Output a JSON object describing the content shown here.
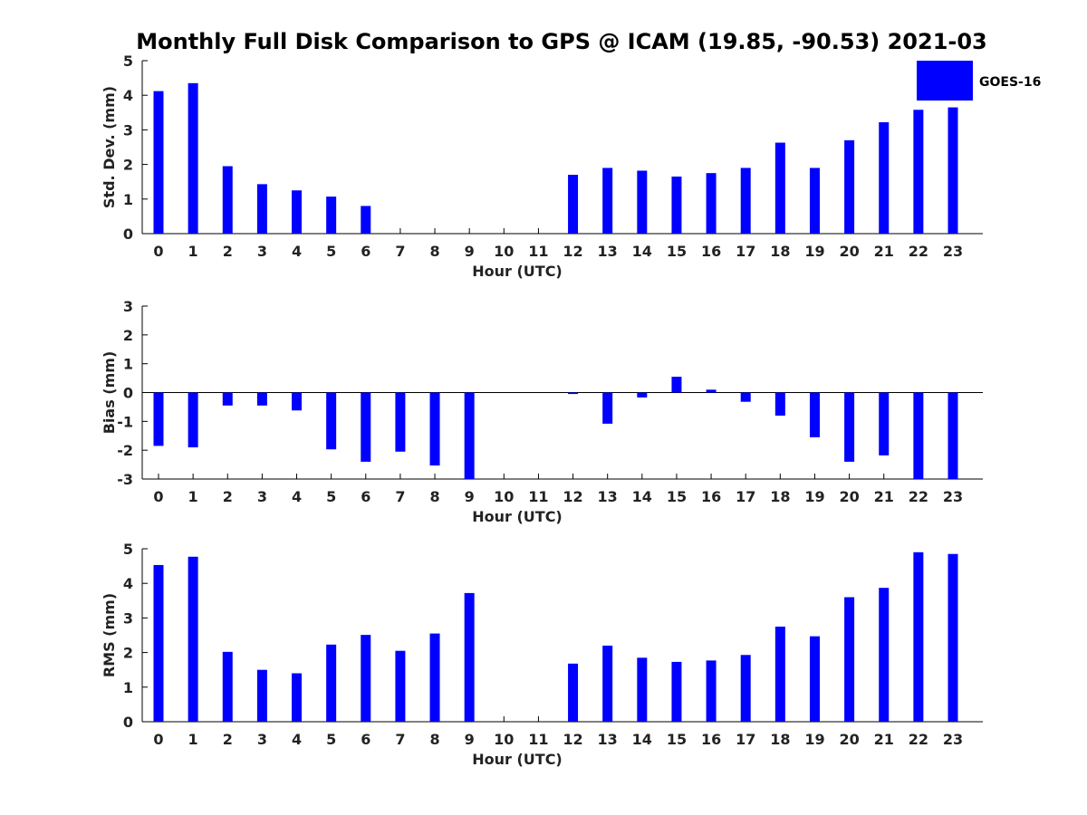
{
  "chart_data": {
    "type": "bar",
    "title": "Monthly Full Disk Comparison to GPS @ ICAM (19.85, -90.53) 2021-03",
    "legend": {
      "label": "GOES-16",
      "color": "#0000ff",
      "placement": "top-right"
    },
    "categories": [
      "0",
      "1",
      "2",
      "3",
      "4",
      "5",
      "6",
      "7",
      "8",
      "9",
      "10",
      "11",
      "12",
      "13",
      "14",
      "15",
      "16",
      "17",
      "18",
      "19",
      "20",
      "21",
      "22",
      "23"
    ],
    "panels": [
      {
        "ylabel": "Std. Dev. (mm)",
        "xlabel": "Hour (UTC)",
        "ylim": [
          0,
          5
        ],
        "yticks": [
          "0",
          "1",
          "2",
          "3",
          "4",
          "5"
        ],
        "values": [
          4.12,
          4.35,
          1.95,
          1.43,
          1.25,
          1.07,
          0.8,
          null,
          null,
          null,
          null,
          null,
          1.7,
          1.9,
          1.82,
          1.65,
          1.75,
          1.9,
          2.63,
          1.9,
          2.7,
          3.22,
          3.58,
          3.65
        ]
      },
      {
        "ylabel": "Bias (mm)",
        "xlabel": "Hour (UTC)",
        "ylim": [
          -3,
          3
        ],
        "yticks": [
          "-3",
          "-2",
          "-1",
          "0",
          "1",
          "2",
          "3"
        ],
        "values": [
          -1.85,
          -1.9,
          -0.45,
          -0.45,
          -0.62,
          -1.97,
          -2.4,
          -2.05,
          -2.53,
          -3.0,
          null,
          null,
          -0.05,
          -1.08,
          -0.17,
          0.55,
          0.1,
          -0.32,
          -0.8,
          -1.55,
          -2.4,
          -2.18,
          -3.0,
          -3.0
        ]
      },
      {
        "ylabel": "RMS (mm)",
        "xlabel": "Hour (UTC)",
        "ylim": [
          0,
          5
        ],
        "yticks": [
          "0",
          "1",
          "2",
          "3",
          "4",
          "5"
        ],
        "values": [
          4.53,
          4.77,
          2.02,
          1.5,
          1.4,
          2.23,
          2.51,
          2.05,
          2.55,
          3.72,
          null,
          null,
          1.68,
          2.2,
          1.85,
          1.73,
          1.77,
          1.93,
          2.75,
          2.47,
          3.6,
          3.87,
          4.9,
          4.85
        ]
      }
    ]
  }
}
